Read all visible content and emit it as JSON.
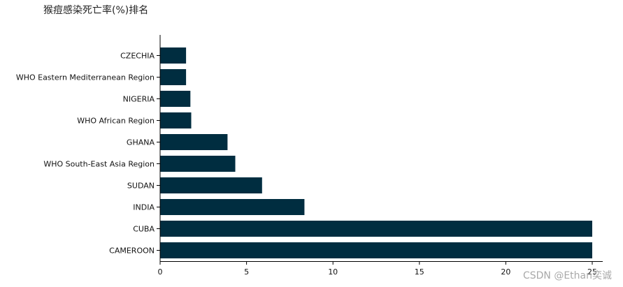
{
  "chart_data": {
    "type": "bar",
    "orientation": "horizontal",
    "title": "猴痘感染死亡率(%)排名",
    "categories": [
      "CZECHIA",
      "WHO Eastern Mediterranean Region",
      "NIGERIA",
      "WHO African Region",
      "GHANA",
      "WHO South-East Asia Region",
      "SUDAN",
      "INDIA",
      "CUBA",
      "CAMEROON"
    ],
    "values": [
      1.5,
      1.5,
      1.75,
      1.8,
      3.9,
      4.35,
      5.9,
      8.35,
      25,
      25
    ],
    "xlim": [
      0,
      25.5
    ],
    "xticks": [
      0,
      5,
      10,
      15,
      20,
      25
    ],
    "xtick_labels": [
      "0",
      "5",
      "10",
      "15",
      "20",
      "25"
    ],
    "bar_color": "#002d40",
    "grid": false
  },
  "watermark": "CSDN @Ethan奕诚"
}
